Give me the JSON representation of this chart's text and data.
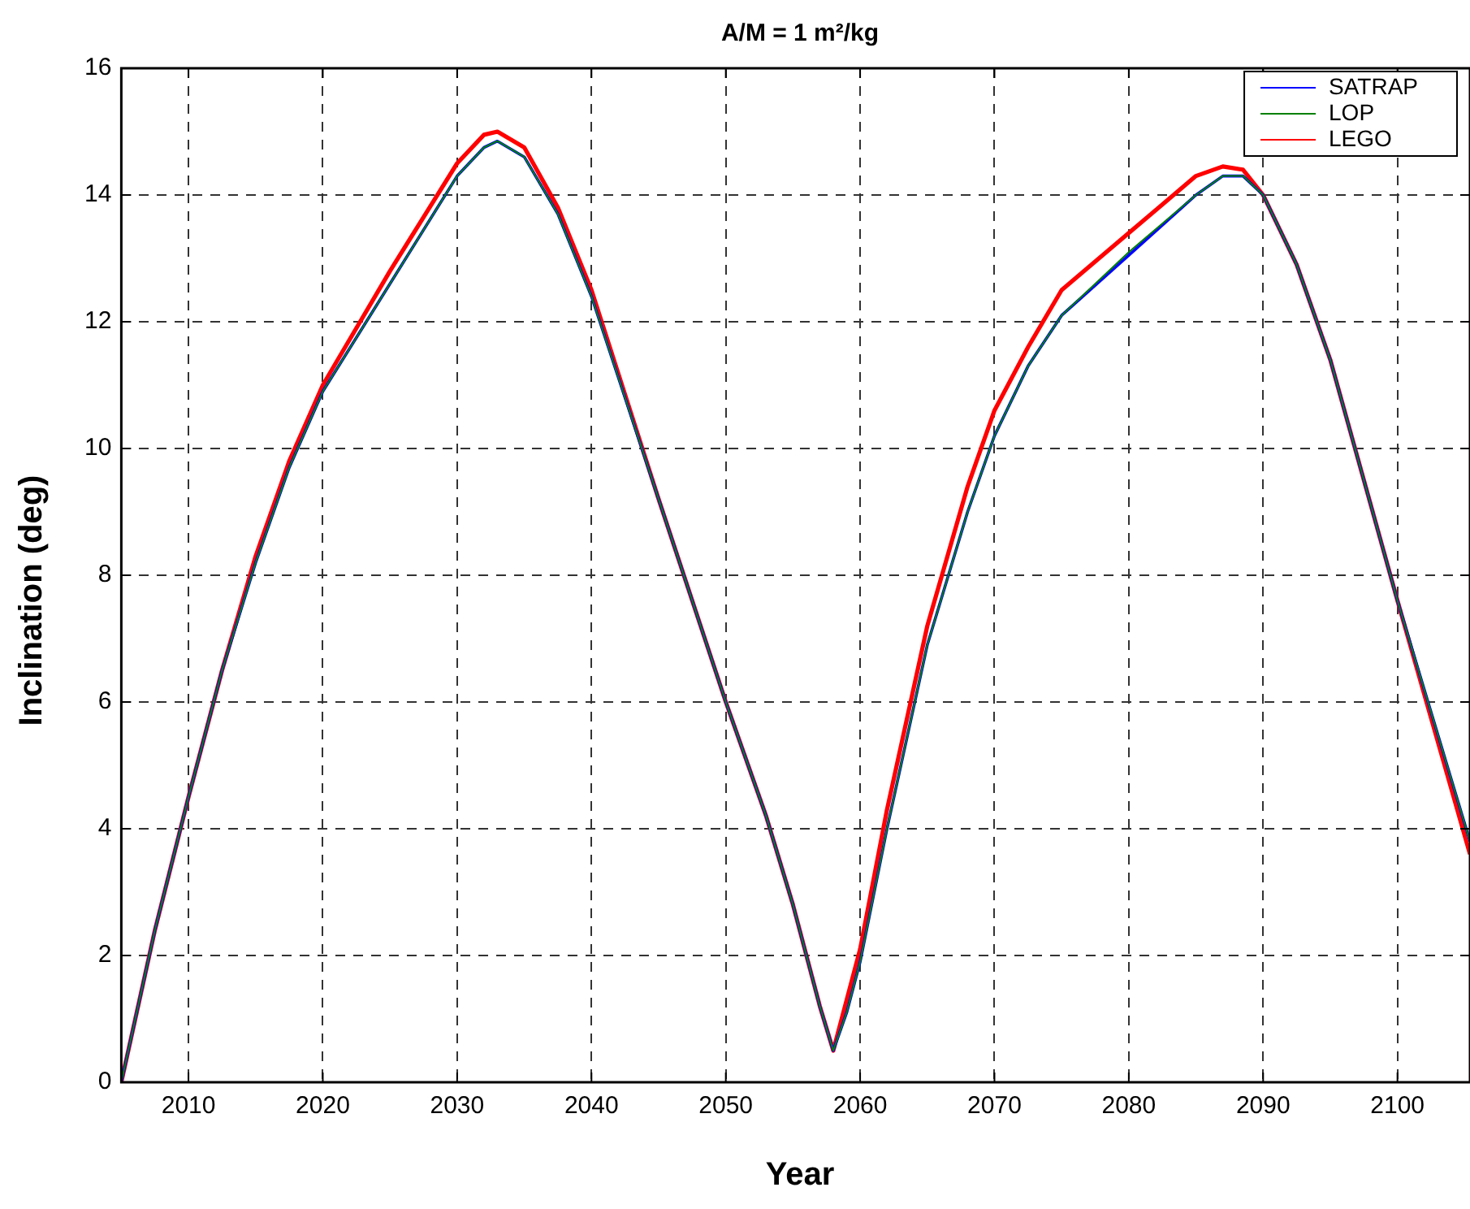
{
  "chart_data": {
    "type": "line",
    "title": "A/M = 1 m²/kg",
    "xlabel": "Year",
    "ylabel": "Inclination (deg)",
    "xlim": [
      2005,
      2105.4
    ],
    "xticks": [
      2010,
      2020,
      2030,
      2040,
      2050,
      2060,
      2070,
      2080,
      2090,
      2100
    ],
    "ylim": [
      0,
      16
    ],
    "yticks": [
      0,
      2,
      4,
      6,
      8,
      10,
      12,
      14,
      16
    ],
    "grid": true,
    "legend": "top right",
    "line_style": "solid",
    "marker": "none",
    "series": [
      {
        "name": "SATRAP",
        "color": "#0000ff",
        "x": [
          2005,
          2007.5,
          2010,
          2012.5,
          2015,
          2017.5,
          2020,
          2025,
          2030,
          2032,
          2033,
          2035,
          2037.5,
          2040,
          2045,
          2050,
          2053,
          2055,
          2057,
          2058,
          2059,
          2060,
          2062,
          2065,
          2068,
          2070,
          2072.5,
          2075,
          2080,
          2085,
          2087,
          2088.5,
          2090,
          2092.5,
          2095,
          2100,
          2105.4
        ],
        "values": [
          0,
          2.4,
          4.5,
          6.5,
          8.2,
          9.7,
          10.9,
          12.6,
          14.3,
          14.75,
          14.85,
          14.6,
          13.7,
          12.4,
          9.2,
          6.0,
          4.2,
          2.8,
          1.2,
          0.5,
          1.1,
          1.9,
          4.0,
          6.9,
          9.0,
          10.2,
          11.3,
          12.1,
          13.05,
          14.0,
          14.3,
          14.3,
          14.0,
          12.9,
          11.4,
          7.6,
          3.8
        ]
      },
      {
        "name": "LOP",
        "color": "#008000",
        "x": [
          2005,
          2007.5,
          2010,
          2012.5,
          2015,
          2017.5,
          2020,
          2025,
          2030,
          2032,
          2033,
          2035,
          2037.5,
          2040,
          2045,
          2050,
          2053,
          2055,
          2057,
          2058,
          2059,
          2060,
          2062,
          2065,
          2068,
          2070,
          2072.5,
          2075,
          2080,
          2085,
          2087,
          2088.5,
          2090,
          2092.5,
          2095,
          2100,
          2105.4
        ],
        "values": [
          0,
          2.4,
          4.5,
          6.5,
          8.2,
          9.7,
          10.9,
          12.6,
          14.3,
          14.75,
          14.85,
          14.6,
          13.7,
          12.4,
          9.2,
          6.0,
          4.2,
          2.8,
          1.2,
          0.5,
          1.1,
          1.9,
          4.0,
          6.9,
          9.0,
          10.2,
          11.3,
          12.1,
          13.1,
          14.0,
          14.3,
          14.3,
          14.0,
          12.9,
          11.4,
          7.6,
          3.8
        ]
      },
      {
        "name": "LEGO",
        "color": "#ff0000",
        "x": [
          2005,
          2007.5,
          2010,
          2012.5,
          2015,
          2017.5,
          2020,
          2025,
          2030,
          2032,
          2033,
          2035,
          2037.5,
          2040,
          2045,
          2050,
          2053,
          2055,
          2057,
          2058,
          2059,
          2060,
          2062,
          2065,
          2068,
          2070,
          2072.5,
          2075,
          2080,
          2085,
          2087,
          2088.5,
          2090,
          2092.5,
          2095,
          2100,
          2105.4
        ],
        "values": [
          0,
          2.4,
          4.5,
          6.5,
          8.3,
          9.8,
          11.0,
          12.8,
          14.5,
          14.95,
          15.0,
          14.75,
          13.8,
          12.5,
          9.2,
          6.0,
          4.2,
          2.8,
          1.2,
          0.5,
          1.3,
          2.1,
          4.3,
          7.2,
          9.4,
          10.6,
          11.6,
          12.5,
          13.4,
          14.3,
          14.45,
          14.4,
          14.0,
          12.9,
          11.4,
          7.6,
          3.6
        ]
      }
    ]
  }
}
